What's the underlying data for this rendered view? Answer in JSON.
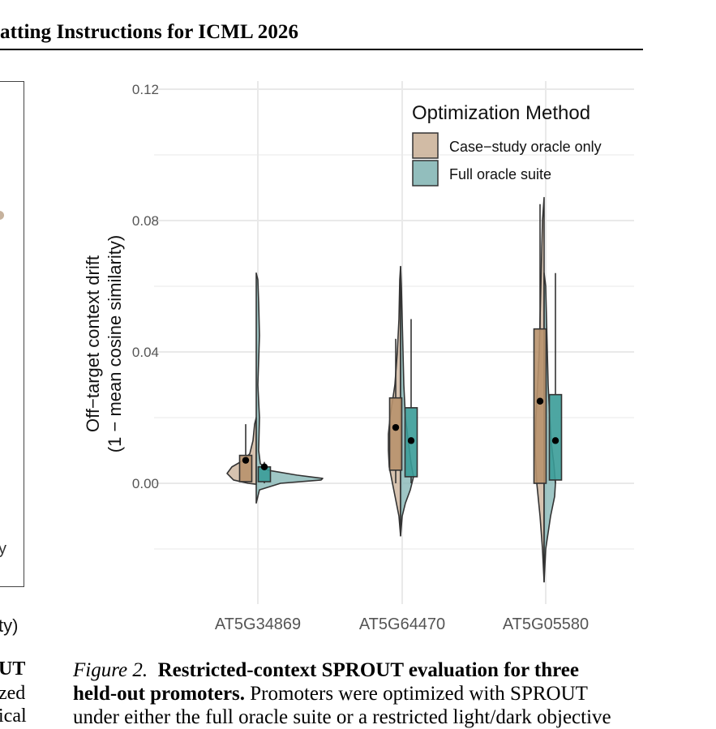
{
  "header": {
    "title": "atting Instructions for ICML 2026"
  },
  "left_fragment": {
    "y_fragment": "y",
    "x_label_fragment": "ty)",
    "caption_lines": [
      "UT",
      "zed",
      "ical"
    ]
  },
  "chart_data": {
    "type": "violin+box",
    "ylabel_line1": "Off−target context drift",
    "ylabel_line2": "(1 − mean cosine similarity)",
    "ylim": [
      -0.02,
      0.12
    ],
    "yticks": [
      "0.12",
      "0.08",
      "0.04",
      "0.00"
    ],
    "ytick_values": [
      0.12,
      0.08,
      0.04,
      0.0
    ],
    "categories": [
      "AT5G34869",
      "AT5G64470",
      "AT5G05580"
    ],
    "grid": true,
    "legend": {
      "title": "Optimization Method",
      "placement": "top-right"
    },
    "series": [
      {
        "name": "Case−study oracle only",
        "color": "#c6aa8f",
        "box": [
          {
            "q1": 0.0005,
            "median": 0.007,
            "q3": 0.0085,
            "whisker_low": 0.0,
            "whisker_high": 0.018,
            "mean": 0.007
          },
          {
            "q1": 0.004,
            "median": 0.017,
            "q3": 0.026,
            "whisker_low": 0.0,
            "whisker_high": 0.044,
            "mean": 0.017
          },
          {
            "q1": 0.0,
            "median": 0.025,
            "q3": 0.047,
            "whisker_low": 0.0,
            "whisker_high": 0.085,
            "mean": 0.025
          }
        ]
      },
      {
        "name": "Full oracle suite",
        "color": "#7fb3b1",
        "box": [
          {
            "q1": 0.0005,
            "median": 0.005,
            "q3": 0.005,
            "whisker_low": 0.0,
            "whisker_high": 0.0065,
            "mean": 0.005
          },
          {
            "q1": 0.002,
            "median": 0.013,
            "q3": 0.023,
            "whisker_low": 0.0,
            "whisker_high": 0.05,
            "mean": 0.013
          },
          {
            "q1": 0.001,
            "median": 0.013,
            "q3": 0.027,
            "whisker_low": 0.0,
            "whisker_high": 0.064,
            "mean": 0.013
          }
        ]
      }
    ],
    "colors": {
      "case_fill": "#c6aa8f",
      "full_fill": "#7fb3b1",
      "box_case": "#b8926d",
      "box_full": "#3a9c98",
      "grid": "#e9e9e9"
    }
  },
  "caption": {
    "label": "Figure 2.",
    "bold_text": "Restricted-context SPROUT evaluation for three",
    "bold_text2": "held-out promoters.",
    "text": " Promoters were optimized with SPROUT",
    "line3": "under either the full oracle suite or a restricted light/dark objective"
  }
}
